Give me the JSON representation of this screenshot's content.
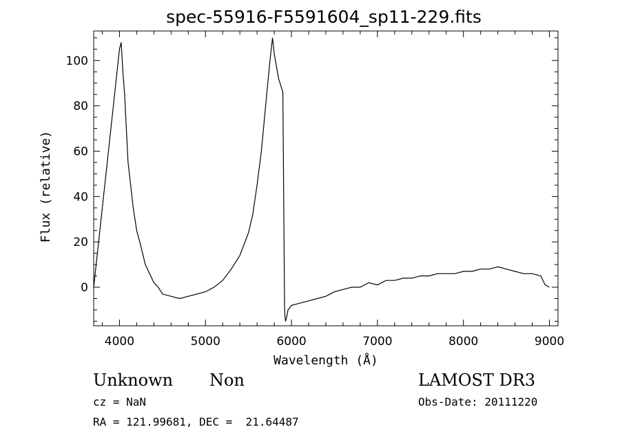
{
  "footer": {
    "class_label": "Unknown",
    "subclass_label": "Non",
    "cz_text": "cz = NaN",
    "coords_text": "RA = 121.99681, DEC =  21.64487",
    "survey_label": "LAMOST DR3",
    "obs_date_text": "Obs-Date: 20111220"
  },
  "chart_data": {
    "type": "line",
    "title": "spec-55916-F5591604_sp11-229.fits",
    "xlabel": "Wavelength (Å)",
    "ylabel": "Flux (relative)",
    "xlim": [
      3700,
      9100
    ],
    "ylim": [
      -17,
      113
    ],
    "xticks": [
      4000,
      5000,
      6000,
      7000,
      8000,
      9000
    ],
    "yticks": [
      0,
      20,
      40,
      60,
      80,
      100
    ],
    "line_color": "#000000",
    "series": [
      {
        "x": [
          3700,
          3800,
          3900,
          4000,
          4020,
          4040,
          4060,
          4080,
          4100,
          4130,
          4160,
          4200,
          4250,
          4300,
          4350,
          4400,
          4450,
          4500,
          4600,
          4700,
          4800,
          4900,
          5000,
          5100,
          5200,
          5300,
          5400,
          5500,
          5550,
          5600,
          5650,
          5700,
          5750,
          5780,
          5800,
          5850,
          5900,
          5920,
          5930,
          5940,
          5960,
          6000,
          6100,
          6200,
          6300,
          6400,
          6500,
          6600,
          6700,
          6800,
          6900,
          7000,
          7100,
          7200,
          7300,
          7400,
          7500,
          7600,
          7700,
          7800,
          7900,
          8000,
          8100,
          8200,
          8300,
          8400,
          8500,
          8600,
          8700,
          8800,
          8900,
          8950,
          9000
        ],
        "y": [
          0,
          35,
          70,
          105,
          108,
          95,
          85,
          70,
          55,
          45,
          35,
          25,
          18,
          10,
          6,
          2,
          0,
          -3,
          -4,
          -5,
          -4,
          -3,
          -2,
          0,
          3,
          8,
          14,
          24,
          32,
          45,
          60,
          80,
          100,
          110,
          103,
          92,
          86,
          -10,
          -15,
          -14,
          -10,
          -8,
          -7,
          -6,
          -5,
          -4,
          -2,
          -1,
          0,
          0,
          2,
          1,
          3,
          3,
          4,
          4,
          5,
          5,
          6,
          6,
          6,
          7,
          7,
          8,
          8,
          9,
          8,
          7,
          6,
          6,
          5,
          1,
          0
        ]
      }
    ]
  }
}
